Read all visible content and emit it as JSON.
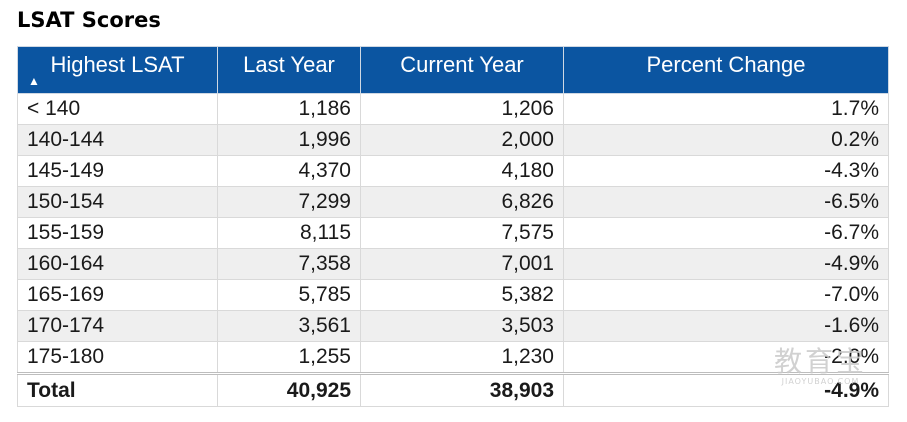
{
  "title": "LSAT Scores",
  "table": {
    "header_color": "#0b55a1",
    "columns": [
      "Highest LSAT",
      "Last Year",
      "Current Year",
      "Percent Change"
    ],
    "sort": {
      "column": "Highest LSAT",
      "direction": "ascending",
      "icon": "sort-up-triangle-icon"
    },
    "rows": [
      [
        "< 140",
        "1,186",
        "1,206",
        "1.7%"
      ],
      [
        "140-144",
        "1,996",
        "2,000",
        "0.2%"
      ],
      [
        "145-149",
        "4,370",
        "4,180",
        "-4.3%"
      ],
      [
        "150-154",
        "7,299",
        "6,826",
        "-6.5%"
      ],
      [
        "155-159",
        "8,115",
        "7,575",
        "-6.7%"
      ],
      [
        "160-164",
        "7,358",
        "7,001",
        "-4.9%"
      ],
      [
        "165-169",
        "5,785",
        "5,382",
        "-7.0%"
      ],
      [
        "170-174",
        "3,561",
        "3,503",
        "-1.6%"
      ],
      [
        "175-180",
        "1,255",
        "1,230",
        "-2.0%"
      ]
    ],
    "total": [
      "Total",
      "40,925",
      "38,903",
      "-4.9%"
    ]
  },
  "watermark": {
    "main": "教育宝",
    "sub": "JIAOYUBAO.COM"
  }
}
